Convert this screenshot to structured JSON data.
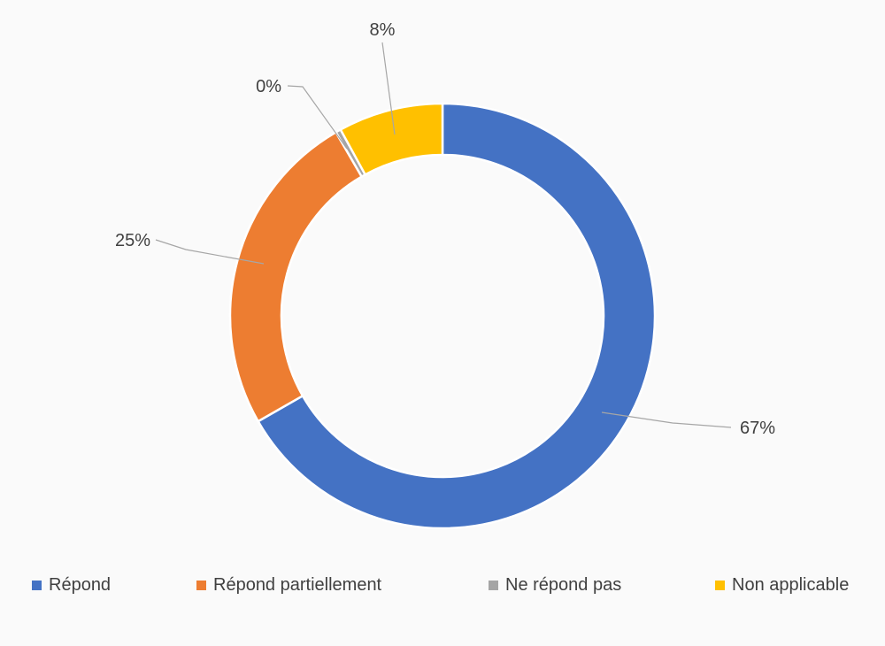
{
  "chart_data": {
    "type": "pie",
    "variant": "donut",
    "title": "",
    "legend_position": "bottom",
    "categories": [
      "Répond",
      "Répond partiellement",
      "Ne répond pas",
      "Non applicable"
    ],
    "values": [
      67,
      25,
      0.4,
      8
    ],
    "data_labels": [
      "67%",
      "25%",
      "0%",
      "8%"
    ],
    "colors": [
      "#4472c4",
      "#ed7d31",
      "#a5a5a5",
      "#ffc000"
    ]
  }
}
